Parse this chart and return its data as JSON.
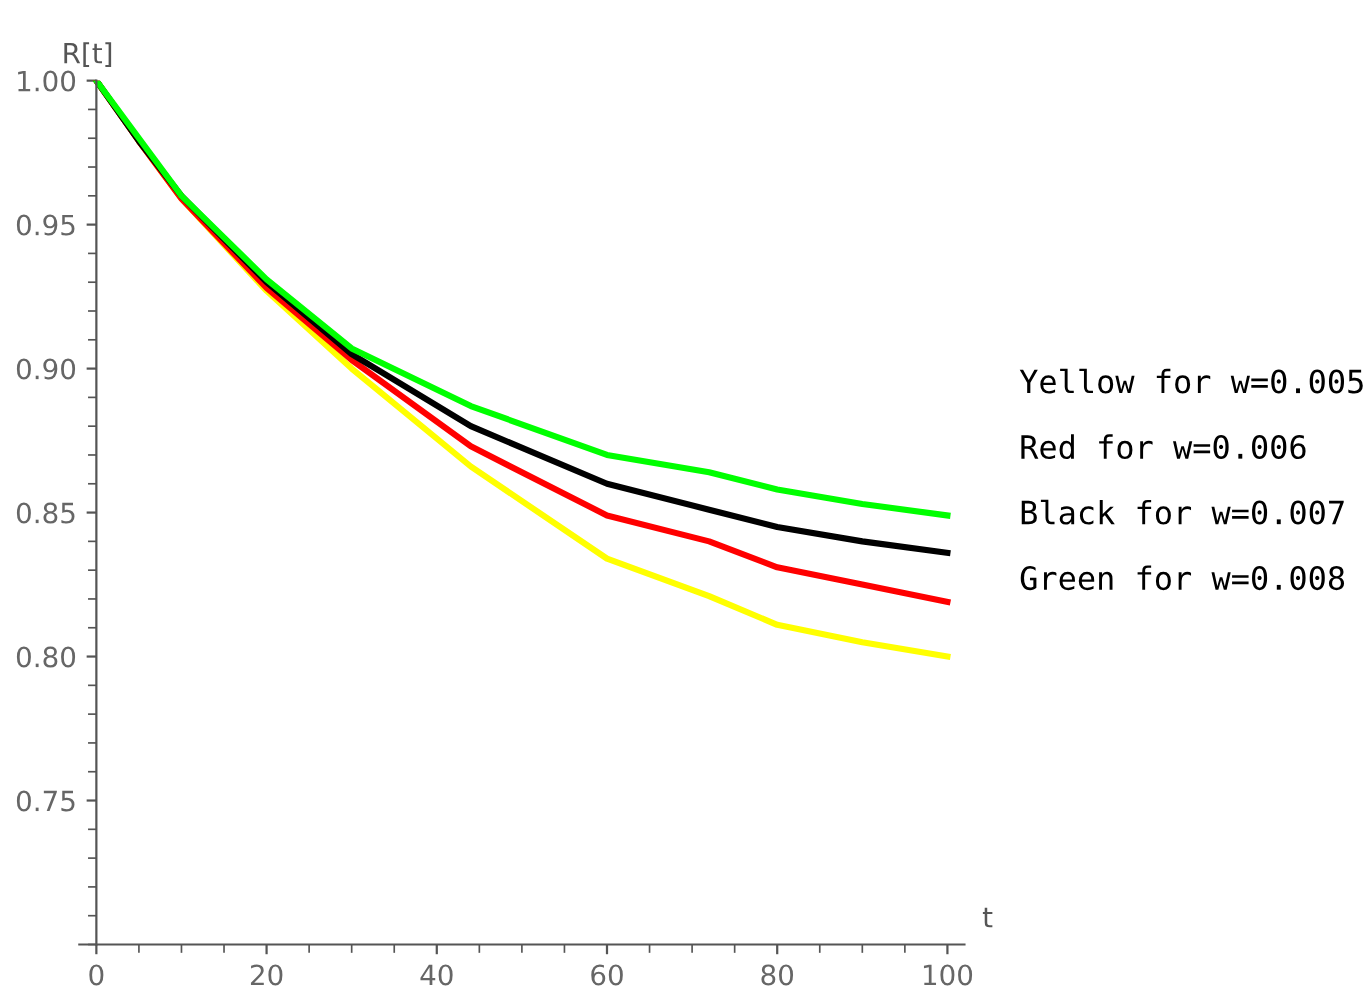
{
  "chart_data": {
    "type": "line",
    "xlabel": "t",
    "ylabel": "R[t]",
    "x": [
      0,
      5,
      10,
      20,
      30,
      44,
      60,
      72,
      80,
      90,
      100
    ],
    "series": [
      {
        "color": "#ffff00",
        "values": [
          1.0,
          0.979,
          0.959,
          0.927,
          0.9,
          0.866,
          0.834,
          0.821,
          0.811,
          0.805,
          0.8
        ]
      },
      {
        "color": "#ff0000",
        "values": [
          1.0,
          0.979,
          0.959,
          0.928,
          0.903,
          0.873,
          0.849,
          0.84,
          0.831,
          0.825,
          0.819
        ]
      },
      {
        "color": "#000000",
        "values": [
          1.0,
          0.979,
          0.96,
          0.93,
          0.905,
          0.88,
          0.86,
          0.851,
          0.845,
          0.84,
          0.836
        ]
      },
      {
        "color": "#00ff00",
        "values": [
          1.0,
          0.98,
          0.96,
          0.931,
          0.907,
          0.887,
          0.87,
          0.864,
          0.858,
          0.853,
          0.849
        ]
      }
    ],
    "xlim": [
      -2,
      102
    ],
    "ylim": [
      0.7,
      1.0
    ],
    "xticks": [
      0,
      20,
      40,
      60,
      80,
      100
    ],
    "yticks": [
      {
        "value": 0.75,
        "label": "0.75"
      },
      {
        "value": 0.8,
        "label": "0.80"
      },
      {
        "value": 0.85,
        "label": "0.85"
      },
      {
        "value": 0.9,
        "label": "0.90"
      },
      {
        "value": 0.95,
        "label": "0.95"
      },
      {
        "value": 1.0,
        "label": "1.00"
      }
    ],
    "annotations": [
      "Yellow for w=0.005",
      "Red for w=0.006",
      "Black for w=0.007",
      "Green for w=0.008"
    ],
    "grid": false,
    "legend": false,
    "marker": "none",
    "line_style": "solid"
  }
}
